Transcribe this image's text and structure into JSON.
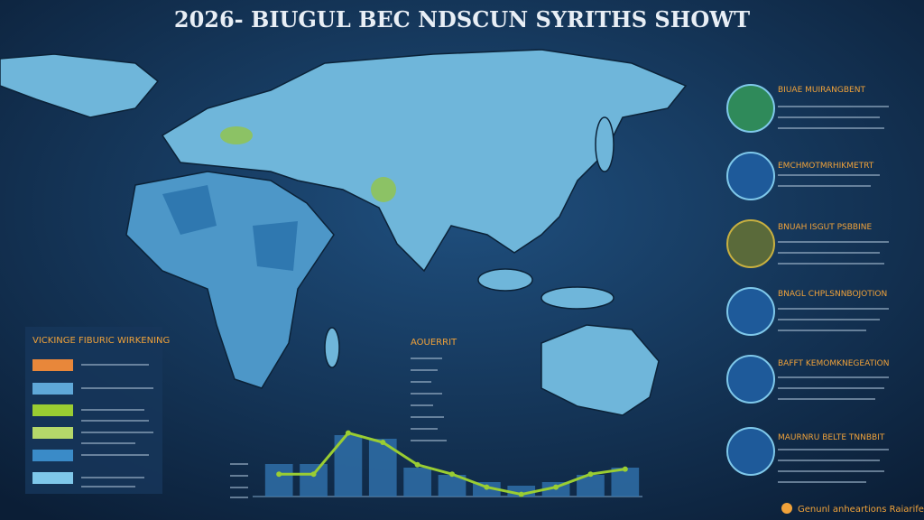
{
  "title": "2026- BIUGUL BEC NDSCUN SYRITHS SHOWT",
  "legend": {
    "title": "VICKINGE FIBURIC WIRKENING"
  },
  "side_panel": {
    "headings": [
      "BIUAE MUIRANGBENT",
      "EMCHMOTMRHIKMETRT",
      "BNUAH ISGUT PSBBINE",
      "BNAGL CHPLSNNBOJOTION",
      "BAFFT KEMOMKNEGEATION",
      "MAURNRU BELTE TNNBBIT"
    ]
  },
  "center_heading": "AOUERRIT",
  "footer": "Genunl anheartions Raiarife",
  "chart_data": {
    "type": "bar",
    "ylim": [
      0,
      100
    ],
    "series": [
      {
        "color": "#2f6fa8",
        "values": [
          45,
          45,
          85,
          80,
          40,
          30,
          20,
          15,
          20,
          30,
          40
        ]
      },
      {
        "color": "#9acd32",
        "values": [
          31,
          31,
          88,
          75,
          44,
          31,
          13,
          3,
          13,
          31,
          38
        ]
      }
    ]
  }
}
